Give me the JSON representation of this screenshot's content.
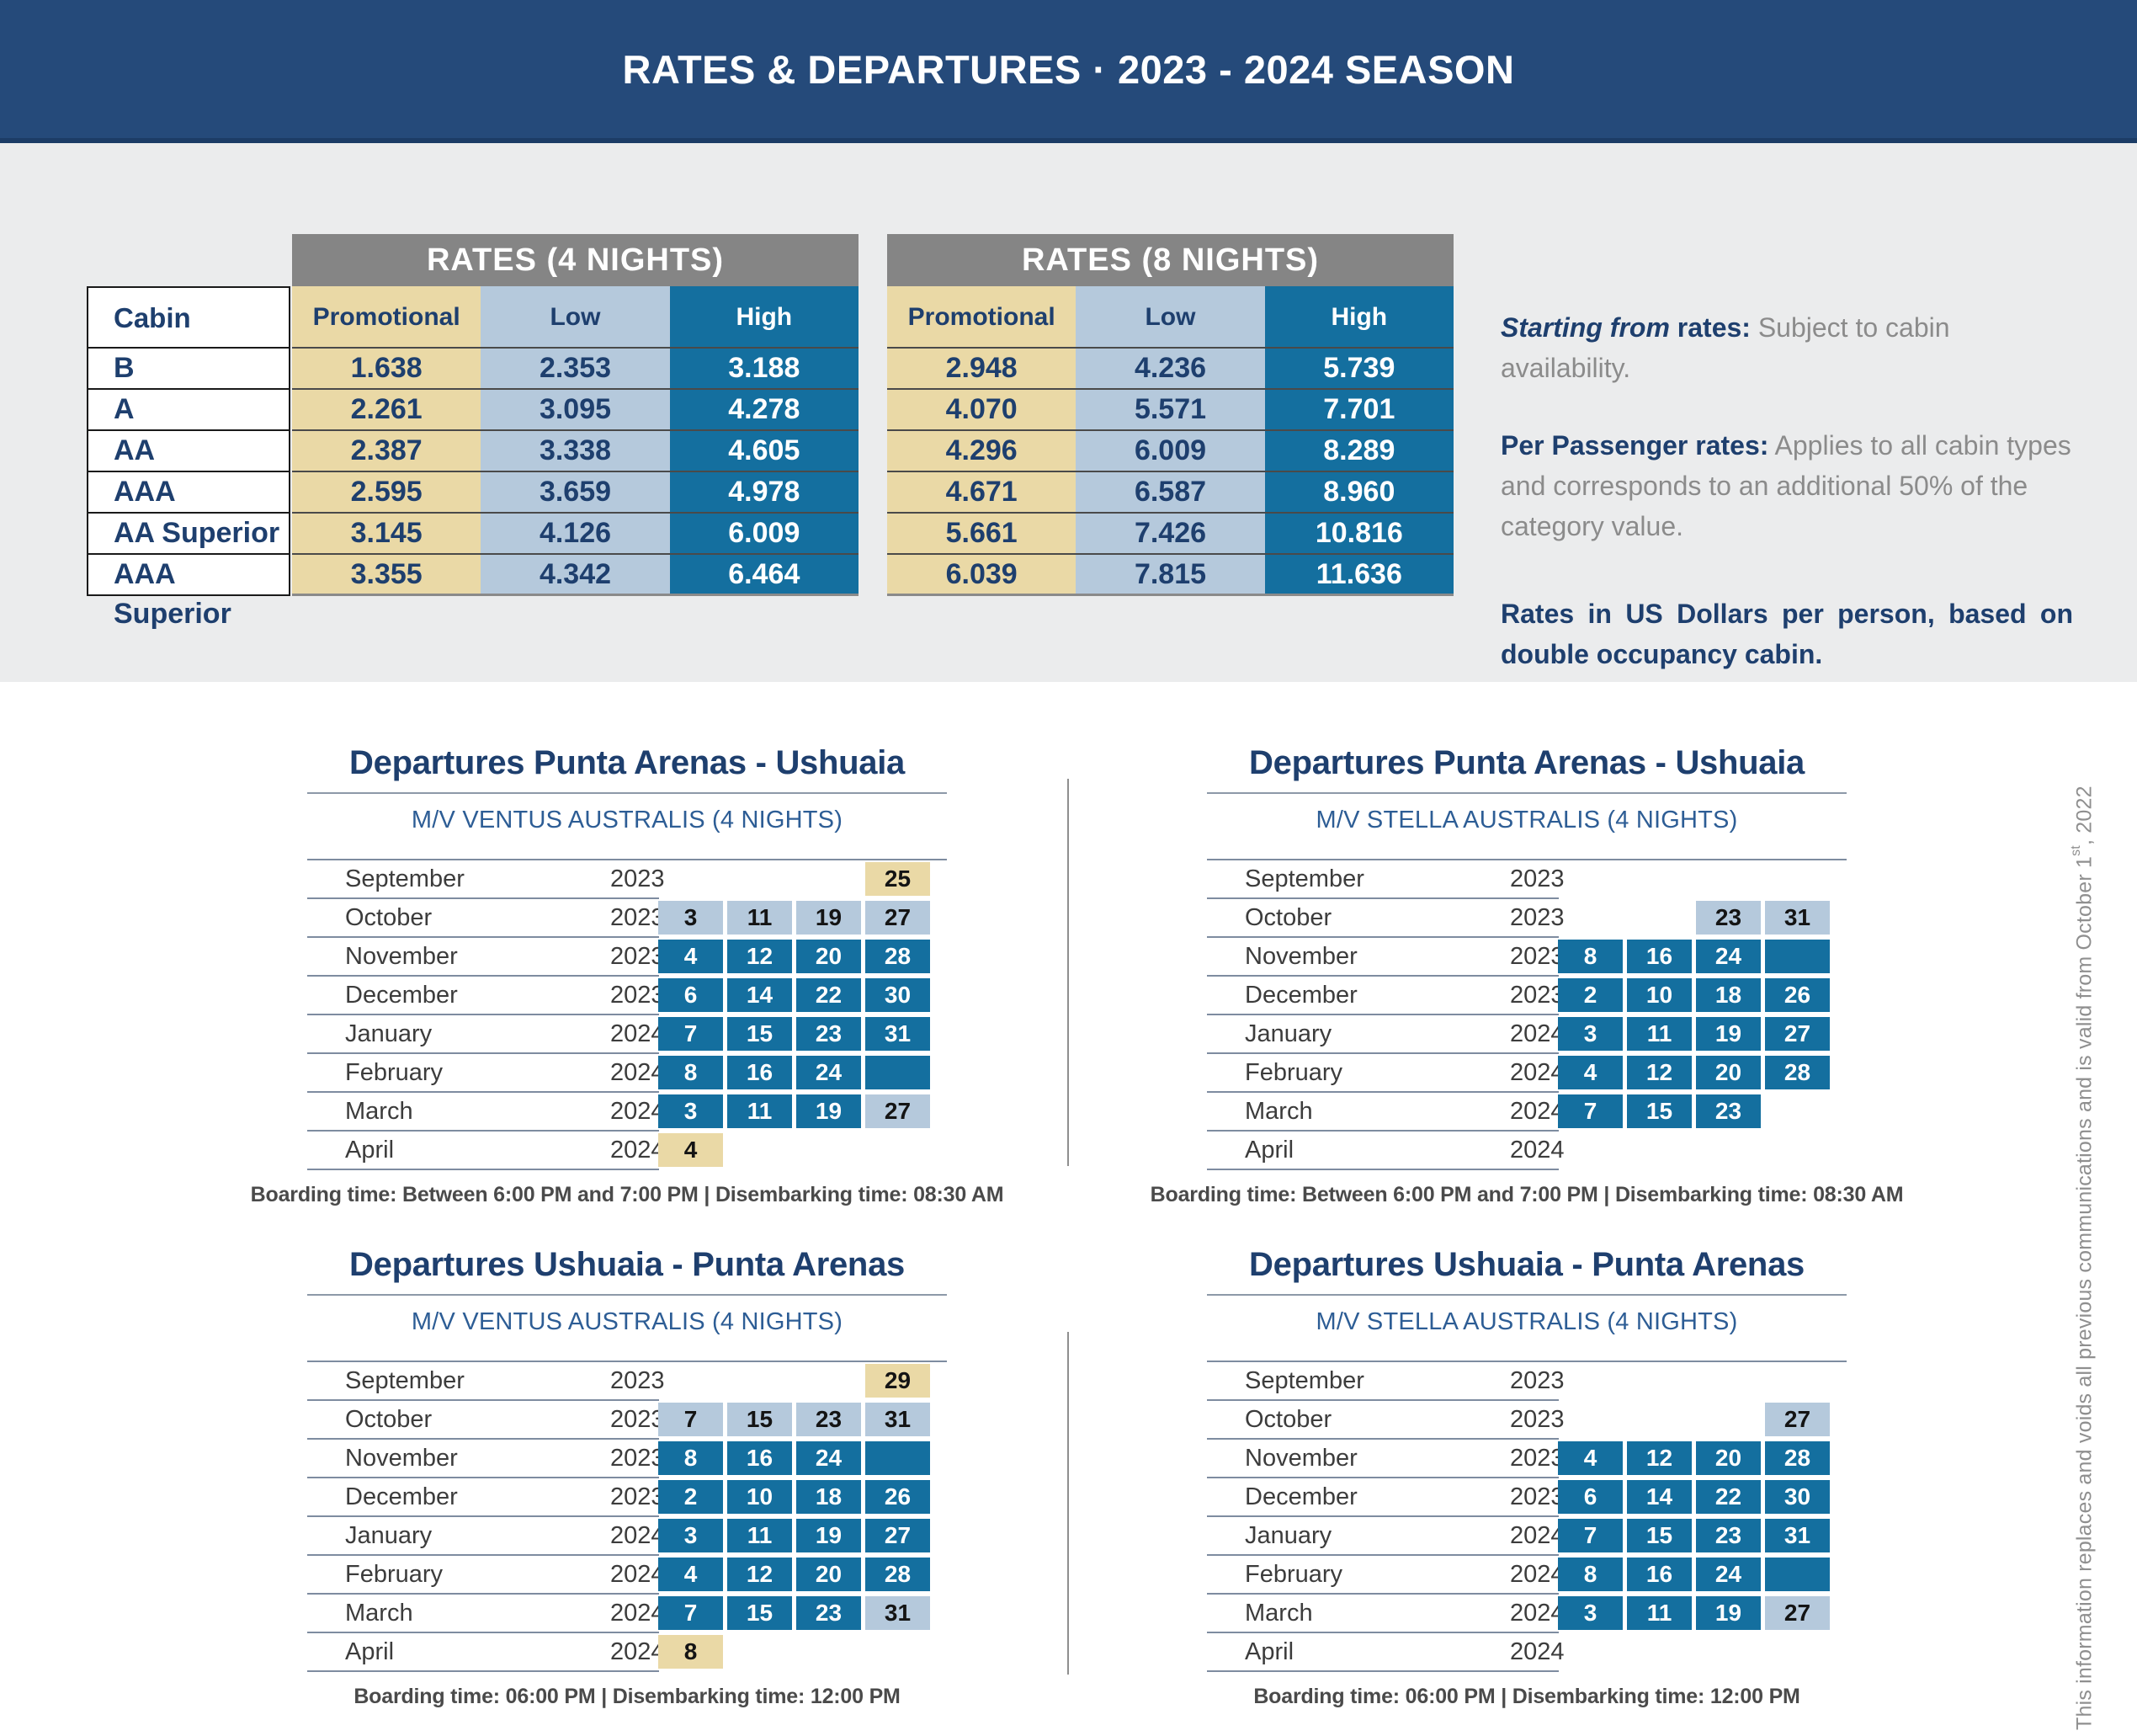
{
  "header": {
    "title": "RATES & DEPARTURES · 2023 - 2024 SEASON"
  },
  "rates": {
    "cabin_header": "Cabin",
    "cabins": [
      "B",
      "A",
      "AA",
      "AAA",
      "AA Superior",
      "AAA Superior"
    ],
    "columns": [
      "Promotional",
      "Low",
      "High"
    ],
    "tables": [
      {
        "title": "RATES (4 NIGHTS)",
        "promotional": [
          "1.638",
          "2.261",
          "2.387",
          "2.595",
          "3.145",
          "3.355"
        ],
        "low": [
          "2.353",
          "3.095",
          "3.338",
          "3.659",
          "4.126",
          "4.342"
        ],
        "high": [
          "3.188",
          "4.278",
          "4.605",
          "4.978",
          "6.009",
          "6.464"
        ]
      },
      {
        "title": "RATES (8 NIGHTS)",
        "promotional": [
          "2.948",
          "4.070",
          "4.296",
          "4.671",
          "5.661",
          "6.039"
        ],
        "low": [
          "4.236",
          "5.571",
          "6.009",
          "6.587",
          "7.426",
          "7.815"
        ],
        "high": [
          "5.739",
          "7.701",
          "8.289",
          "8.960",
          "10.816",
          "11.636"
        ]
      }
    ]
  },
  "notes": {
    "starting_label_italic": "Starting from",
    "starting_label_rest": " rates:",
    "starting_text": " Subject to cabin availability.",
    "per_passenger_label": "Per Passenger rates:",
    "per_passenger_text": " Applies to all cabin types and corresponds to an additional 50% of the category value.",
    "dollars_text": "Rates in US Dollars per person, based on double occupancy cabin."
  },
  "departures": {
    "tables": [
      {
        "title": "Departures Punta Arenas - Ushuaia",
        "vessel": "M/V VENTUS AUSTRALIS (4 NIGHTS)",
        "boarding": "Boarding time: Between 6:00 PM and 7:00 PM | Disembarking time: 08:30 AM",
        "rows": [
          {
            "month": "September",
            "year": "2023",
            "cells": [
              null,
              null,
              null,
              {
                "v": "25",
                "c": "tan"
              }
            ]
          },
          {
            "month": "October",
            "year": "2023",
            "cells": [
              {
                "v": "3",
                "c": "light"
              },
              {
                "v": "11",
                "c": "light"
              },
              {
                "v": "19",
                "c": "light"
              },
              {
                "v": "27",
                "c": "light"
              }
            ]
          },
          {
            "month": "November",
            "year": "2023",
            "cells": [
              {
                "v": "4",
                "c": "dark"
              },
              {
                "v": "12",
                "c": "dark"
              },
              {
                "v": "20",
                "c": "dark"
              },
              {
                "v": "28",
                "c": "dark"
              }
            ]
          },
          {
            "month": "December",
            "year": "2023",
            "cells": [
              {
                "v": "6",
                "c": "dark"
              },
              {
                "v": "14",
                "c": "dark"
              },
              {
                "v": "22",
                "c": "dark"
              },
              {
                "v": "30",
                "c": "dark"
              }
            ]
          },
          {
            "month": "January",
            "year": "2024",
            "cells": [
              {
                "v": "7",
                "c": "dark"
              },
              {
                "v": "15",
                "c": "dark"
              },
              {
                "v": "23",
                "c": "dark"
              },
              {
                "v": "31",
                "c": "dark"
              }
            ]
          },
          {
            "month": "February",
            "year": "2024",
            "cells": [
              {
                "v": "8",
                "c": "dark"
              },
              {
                "v": "16",
                "c": "dark"
              },
              {
                "v": "24",
                "c": "dark"
              },
              {
                "v": "",
                "c": "dark"
              }
            ]
          },
          {
            "month": "March",
            "year": "2024",
            "cells": [
              {
                "v": "3",
                "c": "dark"
              },
              {
                "v": "11",
                "c": "dark"
              },
              {
                "v": "19",
                "c": "dark"
              },
              {
                "v": "27",
                "c": "light"
              }
            ]
          },
          {
            "month": "April",
            "year": "2024",
            "cells": [
              {
                "v": "4",
                "c": "tan"
              },
              null,
              null,
              null
            ]
          }
        ]
      },
      {
        "title": "Departures Punta Arenas - Ushuaia",
        "vessel": "M/V STELLA AUSTRALIS (4 NIGHTS)",
        "boarding": "Boarding time: Between 6:00 PM and 7:00 PM | Disembarking time: 08:30 AM",
        "rows": [
          {
            "month": "September",
            "year": "2023",
            "cells": [
              null,
              null,
              null,
              null
            ]
          },
          {
            "month": "October",
            "year": "2023",
            "cells": [
              null,
              null,
              {
                "v": "23",
                "c": "light"
              },
              {
                "v": "31",
                "c": "light"
              }
            ]
          },
          {
            "month": "November",
            "year": "2023",
            "cells": [
              {
                "v": "8",
                "c": "dark"
              },
              {
                "v": "16",
                "c": "dark"
              },
              {
                "v": "24",
                "c": "dark"
              },
              {
                "v": "",
                "c": "dark"
              }
            ]
          },
          {
            "month": "December",
            "year": "2023",
            "cells": [
              {
                "v": "2",
                "c": "dark"
              },
              {
                "v": "10",
                "c": "dark"
              },
              {
                "v": "18",
                "c": "dark"
              },
              {
                "v": "26",
                "c": "dark"
              }
            ]
          },
          {
            "month": "January",
            "year": "2024",
            "cells": [
              {
                "v": "3",
                "c": "dark"
              },
              {
                "v": "11",
                "c": "dark"
              },
              {
                "v": "19",
                "c": "dark"
              },
              {
                "v": "27",
                "c": "dark"
              }
            ]
          },
          {
            "month": "February",
            "year": "2024",
            "cells": [
              {
                "v": "4",
                "c": "dark"
              },
              {
                "v": "12",
                "c": "dark"
              },
              {
                "v": "20",
                "c": "dark"
              },
              {
                "v": "28",
                "c": "dark"
              }
            ]
          },
          {
            "month": "March",
            "year": "2024",
            "cells": [
              {
                "v": "7",
                "c": "dark"
              },
              {
                "v": "15",
                "c": "dark"
              },
              {
                "v": "23",
                "c": "dark"
              },
              null
            ]
          },
          {
            "month": "April",
            "year": "2024",
            "cells": [
              null,
              null,
              null,
              null
            ]
          }
        ]
      },
      {
        "title": "Departures Ushuaia - Punta Arenas",
        "vessel": "M/V VENTUS AUSTRALIS (4 NIGHTS)",
        "boarding": "Boarding time: 06:00 PM | Disembarking time: 12:00 PM",
        "rows": [
          {
            "month": "September",
            "year": "2023",
            "cells": [
              null,
              null,
              null,
              {
                "v": "29",
                "c": "tan"
              }
            ]
          },
          {
            "month": "October",
            "year": "2023",
            "cells": [
              {
                "v": "7",
                "c": "light"
              },
              {
                "v": "15",
                "c": "light"
              },
              {
                "v": "23",
                "c": "light"
              },
              {
                "v": "31",
                "c": "light"
              }
            ]
          },
          {
            "month": "November",
            "year": "2023",
            "cells": [
              {
                "v": "8",
                "c": "dark"
              },
              {
                "v": "16",
                "c": "dark"
              },
              {
                "v": "24",
                "c": "dark"
              },
              {
                "v": "",
                "c": "dark"
              }
            ]
          },
          {
            "month": "December",
            "year": "2023",
            "cells": [
              {
                "v": "2",
                "c": "dark"
              },
              {
                "v": "10",
                "c": "dark"
              },
              {
                "v": "18",
                "c": "dark"
              },
              {
                "v": "26",
                "c": "dark"
              }
            ]
          },
          {
            "month": "January",
            "year": "2024",
            "cells": [
              {
                "v": "3",
                "c": "dark"
              },
              {
                "v": "11",
                "c": "dark"
              },
              {
                "v": "19",
                "c": "dark"
              },
              {
                "v": "27",
                "c": "dark"
              }
            ]
          },
          {
            "month": "February",
            "year": "2024",
            "cells": [
              {
                "v": "4",
                "c": "dark"
              },
              {
                "v": "12",
                "c": "dark"
              },
              {
                "v": "20",
                "c": "dark"
              },
              {
                "v": "28",
                "c": "dark"
              }
            ]
          },
          {
            "month": "March",
            "year": "2024",
            "cells": [
              {
                "v": "7",
                "c": "dark"
              },
              {
                "v": "15",
                "c": "dark"
              },
              {
                "v": "23",
                "c": "dark"
              },
              {
                "v": "31",
                "c": "light"
              }
            ]
          },
          {
            "month": "April",
            "year": "2024",
            "cells": [
              {
                "v": "8",
                "c": "tan"
              },
              null,
              null,
              null
            ]
          }
        ]
      },
      {
        "title": "Departures Ushuaia - Punta Arenas",
        "vessel": "M/V STELLA AUSTRALIS (4 NIGHTS)",
        "boarding": "Boarding time: 06:00 PM | Disembarking time: 12:00 PM",
        "rows": [
          {
            "month": "September",
            "year": "2023",
            "cells": [
              null,
              null,
              null,
              null
            ]
          },
          {
            "month": "October",
            "year": "2023",
            "cells": [
              null,
              null,
              null,
              {
                "v": "27",
                "c": "light"
              }
            ]
          },
          {
            "month": "November",
            "year": "2023",
            "cells": [
              {
                "v": "4",
                "c": "dark"
              },
              {
                "v": "12",
                "c": "dark"
              },
              {
                "v": "20",
                "c": "dark"
              },
              {
                "v": "28",
                "c": "dark"
              }
            ]
          },
          {
            "month": "December",
            "year": "2023",
            "cells": [
              {
                "v": "6",
                "c": "dark"
              },
              {
                "v": "14",
                "c": "dark"
              },
              {
                "v": "22",
                "c": "dark"
              },
              {
                "v": "30",
                "c": "dark"
              }
            ]
          },
          {
            "month": "January",
            "year": "2024",
            "cells": [
              {
                "v": "7",
                "c": "dark"
              },
              {
                "v": "15",
                "c": "dark"
              },
              {
                "v": "23",
                "c": "dark"
              },
              {
                "v": "31",
                "c": "dark"
              }
            ]
          },
          {
            "month": "February",
            "year": "2024",
            "cells": [
              {
                "v": "8",
                "c": "dark"
              },
              {
                "v": "16",
                "c": "dark"
              },
              {
                "v": "24",
                "c": "dark"
              },
              {
                "v": "",
                "c": "dark"
              }
            ]
          },
          {
            "month": "March",
            "year": "2024",
            "cells": [
              {
                "v": "3",
                "c": "dark"
              },
              {
                "v": "11",
                "c": "dark"
              },
              {
                "v": "19",
                "c": "dark"
              },
              {
                "v": "27",
                "c": "light"
              }
            ]
          },
          {
            "month": "April",
            "year": "2024",
            "cells": [
              null,
              null,
              null,
              null
            ]
          }
        ]
      }
    ]
  },
  "sidebar_note": {
    "text_before_sup": "This information replaces and voids all previous communications and is valid from October 1",
    "sup": "st",
    "text_after_sup": ", 2022"
  },
  "colors": {
    "header_navy": "#254a7a",
    "navy_text": "#1e3f6e",
    "band_gray": "#858585",
    "tan": "#ead9a6",
    "light_blue": "#b5c9dc",
    "dark_blue": "#146f9f",
    "section_bg": "#ebeced",
    "note_gray": "#8f8f8f"
  }
}
